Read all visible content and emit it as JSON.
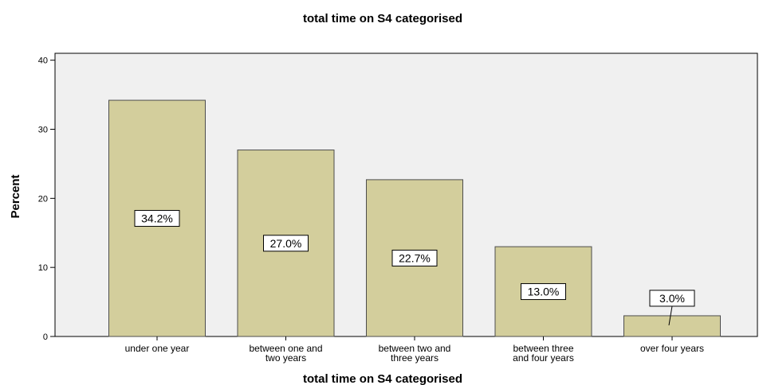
{
  "chart_data": {
    "type": "bar",
    "title": "total time on S4 categorised",
    "xlabel": "total time on S4 categorised",
    "ylabel": "Percent",
    "ylim": [
      0,
      41
    ],
    "yticks": [
      0,
      10,
      20,
      30,
      40
    ],
    "categories": [
      [
        "under one year"
      ],
      [
        "between one and",
        "two years"
      ],
      [
        "between two and",
        "three years"
      ],
      [
        "between three",
        "and four years"
      ],
      [
        "over four years"
      ]
    ],
    "values": [
      34.2,
      27.0,
      22.7,
      13.0,
      3.0
    ],
    "data_labels": [
      "34.2%",
      "27.0%",
      "22.7%",
      "13.0%",
      "3.0%"
    ],
    "grid": false,
    "colors": {
      "bar_fill": "#d3ce9c",
      "bar_stroke": "#4d4d4d",
      "plot_background": "#f0f0f0"
    }
  }
}
